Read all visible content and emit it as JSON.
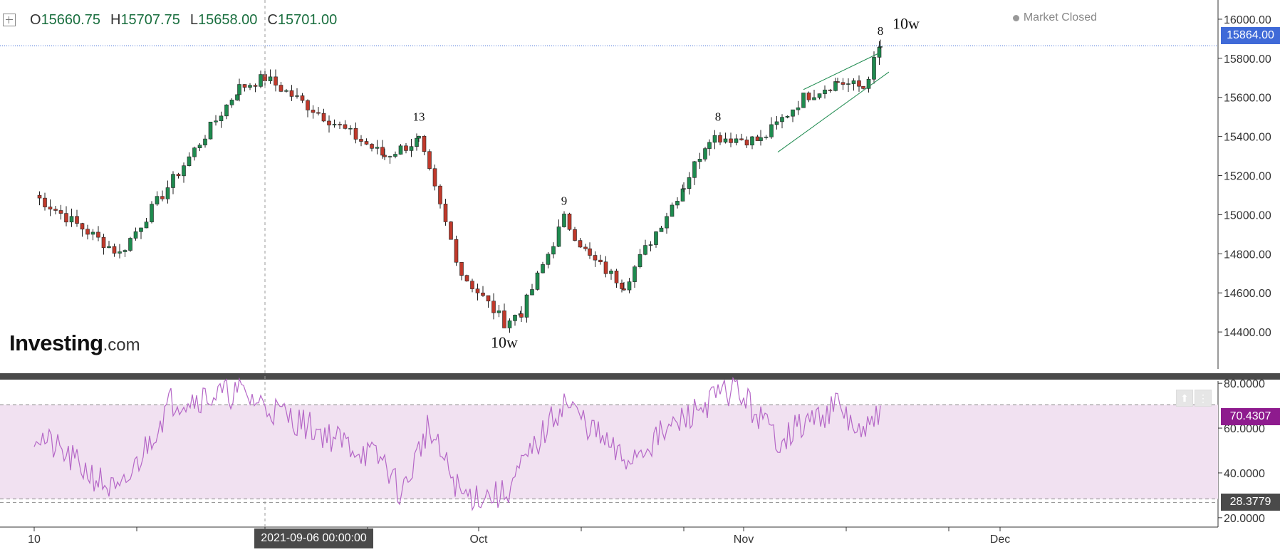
{
  "ohlc": {
    "open_key": "O",
    "open": "15660.75",
    "high_key": "H",
    "high": "15707.75",
    "low_key": "L",
    "low": "15658.00",
    "close_key": "C",
    "close": "15701.00"
  },
  "status": {
    "market": "Market Closed"
  },
  "brand": {
    "bold": "Investing",
    "suffix": ".com"
  },
  "crosshair_date": "2021-09-06 00:00:00",
  "colors": {
    "up": "#1e8b4f",
    "down": "#c0392b",
    "rsi": "#b567c7",
    "rsi_band": "#f1e1f1",
    "price_tag": "#3f6ad8",
    "rsi_tag": "#8e1b8e",
    "separator": "#4a4a4a"
  },
  "chart_data": [
    {
      "type": "candlestick",
      "title": "",
      "y_ticks": [
        "16000.00",
        "15800.00",
        "15600.00",
        "15400.00",
        "15200.00",
        "15000.00",
        "14800.00",
        "14600.00",
        "14400.00"
      ],
      "ylim": [
        14240,
        16080
      ],
      "x_tick_labels": [
        "10",
        "Oct",
        "Nov",
        "Dec"
      ],
      "current_price": "15864.00",
      "key_points": [
        {
          "date": "2021-08-10",
          "price": 15100
        },
        {
          "date": "2021-08-20",
          "price": 14800
        },
        {
          "date": "2021-09-03",
          "price": 15650
        },
        {
          "date": "2021-09-06",
          "price": 15700
        },
        {
          "date": "2021-09-20",
          "price": 15300
        },
        {
          "date": "2021-09-24",
          "price": 15380
        },
        {
          "date": "2021-09-29",
          "price": 14700
        },
        {
          "date": "2021-10-04",
          "price": 14450
        },
        {
          "date": "2021-10-06",
          "price": 14500
        },
        {
          "date": "2021-10-11",
          "price": 14980
        },
        {
          "date": "2021-10-14",
          "price": 14780
        },
        {
          "date": "2021-10-18",
          "price": 14640
        },
        {
          "date": "2021-10-25",
          "price": 15150
        },
        {
          "date": "2021-10-28",
          "price": 15400
        },
        {
          "date": "2021-11-03",
          "price": 15380
        },
        {
          "date": "2021-11-08",
          "price": 15600
        },
        {
          "date": "2021-11-12",
          "price": 15680
        },
        {
          "date": "2021-11-15",
          "price": 15650
        },
        {
          "date": "2021-11-17",
          "price": 15860
        }
      ],
      "annotations": [
        {
          "text": "13",
          "date": "2021-09-24",
          "price": 15480
        },
        {
          "text": "9",
          "date": "2021-10-11",
          "price": 15050
        },
        {
          "text": "10w",
          "date": "2021-10-04",
          "price": 14320
        },
        {
          "text": "8",
          "date": "2021-10-29",
          "price": 15480
        },
        {
          "text": "8",
          "date": "2021-11-17",
          "price": 15920
        },
        {
          "text": "10w",
          "date": "2021-11-20",
          "price": 15950
        }
      ]
    },
    {
      "type": "line",
      "title": "",
      "y_ticks": [
        "80.0000",
        "60.0000",
        "40.0000",
        "20.0000"
      ],
      "ylim": [
        19,
        81
      ],
      "upper_level": "70.4307",
      "lower_level": "28.3779",
      "key_points": [
        {
          "date": "2021-08-10",
          "value": 58
        },
        {
          "date": "2021-08-20",
          "value": 30
        },
        {
          "date": "2021-08-26",
          "value": 72
        },
        {
          "date": "2021-09-03",
          "value": 76
        },
        {
          "date": "2021-09-06",
          "value": 70
        },
        {
          "date": "2021-09-20",
          "value": 45
        },
        {
          "date": "2021-09-22",
          "value": 30
        },
        {
          "date": "2021-09-25",
          "value": 60
        },
        {
          "date": "2021-09-29",
          "value": 30
        },
        {
          "date": "2021-10-04",
          "value": 30
        },
        {
          "date": "2021-10-11",
          "value": 72
        },
        {
          "date": "2021-10-18",
          "value": 45
        },
        {
          "date": "2021-10-28",
          "value": 72
        },
        {
          "date": "2021-10-31",
          "value": 78
        },
        {
          "date": "2021-11-05",
          "value": 55
        },
        {
          "date": "2021-11-12",
          "value": 70
        },
        {
          "date": "2021-11-15",
          "value": 55
        },
        {
          "date": "2021-11-17",
          "value": 70
        }
      ]
    }
  ]
}
